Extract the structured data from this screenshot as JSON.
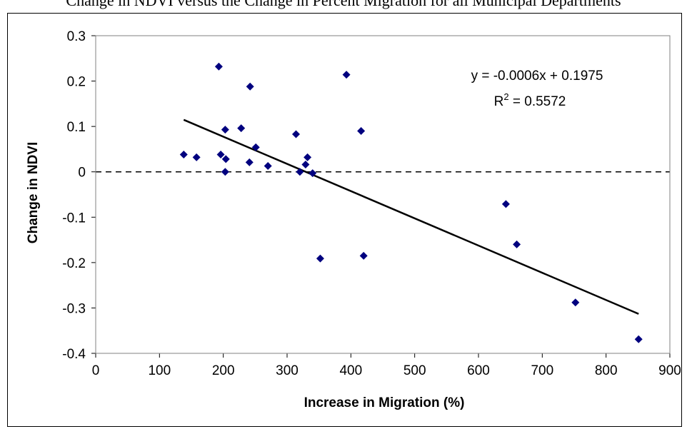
{
  "caption": "Change in NDVI versus the Change in Percent Migration for all Municipal Departments",
  "chart_data": {
    "type": "scatter",
    "title": "",
    "xlabel": "Increase in Migration (%)",
    "ylabel": "Change in NDVI",
    "xlim": [
      0,
      900
    ],
    "ylim": [
      -0.4,
      0.3
    ],
    "x_ticks": [
      "0",
      "100",
      "200",
      "300",
      "400",
      "500",
      "600",
      "700",
      "800",
      "900"
    ],
    "y_ticks": [
      "-0.4",
      "-0.3",
      "-0.2",
      "-0.1",
      "0",
      "0.1",
      "0.2",
      "0.3"
    ],
    "grid": false,
    "reference_line_y": 0,
    "marker": "diamond",
    "marker_color": "#00007f",
    "points": [
      {
        "x": 138,
        "y": 0.038
      },
      {
        "x": 158,
        "y": 0.032
      },
      {
        "x": 193,
        "y": 0.232
      },
      {
        "x": 196,
        "y": 0.038
      },
      {
        "x": 203,
        "y": 0.093
      },
      {
        "x": 204,
        "y": 0.028
      },
      {
        "x": 203,
        "y": 0.0
      },
      {
        "x": 228,
        "y": 0.096
      },
      {
        "x": 242,
        "y": 0.188
      },
      {
        "x": 241,
        "y": 0.021
      },
      {
        "x": 251,
        "y": 0.054
      },
      {
        "x": 270,
        "y": 0.013
      },
      {
        "x": 314,
        "y": 0.083
      },
      {
        "x": 320,
        "y": 0.0
      },
      {
        "x": 329,
        "y": 0.016
      },
      {
        "x": 332,
        "y": 0.032
      },
      {
        "x": 340,
        "y": -0.003
      },
      {
        "x": 352,
        "y": -0.191
      },
      {
        "x": 393,
        "y": 0.214
      },
      {
        "x": 416,
        "y": 0.09
      },
      {
        "x": 420,
        "y": -0.185
      },
      {
        "x": 643,
        "y": -0.071
      },
      {
        "x": 660,
        "y": -0.16
      },
      {
        "x": 752,
        "y": -0.288
      },
      {
        "x": 851,
        "y": -0.369
      }
    ],
    "trendline": {
      "x_start": 138,
      "x_end": 851,
      "slope": -0.0006,
      "intercept": 0.1975,
      "equation": "y = -0.0006x + 0.1975",
      "r2_label": "R",
      "r2_sup": "2",
      "r2_value": " = 0.5572"
    }
  }
}
